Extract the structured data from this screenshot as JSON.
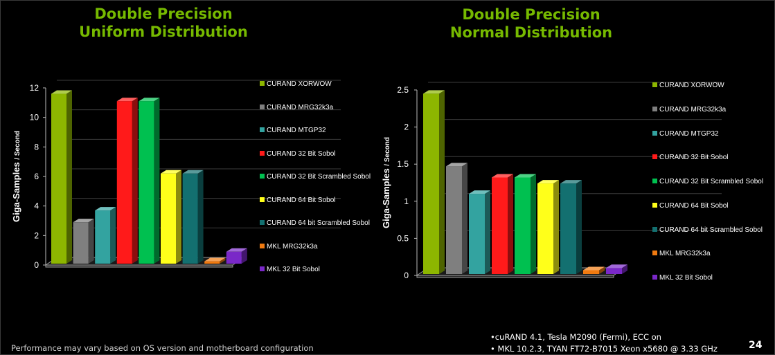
{
  "colors": {
    "title": "#76b900",
    "series": [
      "#8db600",
      "#7f7f7f",
      "#33a3a0",
      "#ff1a1a",
      "#00c050",
      "#ffff1a",
      "#137070",
      "#f07a10",
      "#7a28c8"
    ]
  },
  "chart_data": [
    {
      "type": "bar",
      "title": [
        "Double Precision",
        "Uniform Distribution"
      ],
      "ylabel": "Giga-Samples / Second",
      "ylabel_main": "Giga-Samples",
      "ylabel_unit": "/ Second",
      "ylim": [
        0,
        12
      ],
      "yticks": [
        "0",
        "2",
        "4",
        "6",
        "8",
        "10",
        "12"
      ],
      "grid": true,
      "legend": "right",
      "series": [
        {
          "name": "CURAND XORWOW",
          "values": [
            11.6
          ]
        },
        {
          "name": "CURAND MRG32k3a",
          "values": [
            2.9
          ]
        },
        {
          "name": "CURAND MTGP32",
          "values": [
            3.7
          ]
        },
        {
          "name": "CURAND 32 Bit Sobol",
          "values": [
            11.1
          ]
        },
        {
          "name": "CURAND 32 Bit Scrambled Sobol",
          "values": [
            11.1
          ]
        },
        {
          "name": "CURAND 64 Bit Sobol",
          "values": [
            6.2
          ]
        },
        {
          "name": "CURAND 64 bit Scrambled Sobol",
          "values": [
            6.2
          ]
        },
        {
          "name": "MKL MRG32k3a",
          "values": [
            0.25
          ]
        },
        {
          "name": "MKL 32 Bit Sobol",
          "values": [
            0.9
          ]
        }
      ]
    },
    {
      "type": "bar",
      "title": [
        "Double Precision",
        "Normal Distribution"
      ],
      "ylabel": "Giga-Samples / Second",
      "ylabel_main": "Giga-Samples",
      "ylabel_unit": "/ Second",
      "ylim": [
        0,
        2.5
      ],
      "yticks": [
        "0",
        "0.5",
        "1",
        "1.5",
        "2",
        "2.5"
      ],
      "grid": true,
      "legend": "right",
      "series": [
        {
          "name": "CURAND XORWOW",
          "values": [
            2.45
          ]
        },
        {
          "name": "CURAND MRG32k3a",
          "values": [
            1.47
          ]
        },
        {
          "name": "CURAND MTGP32",
          "values": [
            1.1
          ]
        },
        {
          "name": "CURAND 32 Bit Sobol",
          "values": [
            1.32
          ]
        },
        {
          "name": "CURAND 32 Bit Scrambled Sobol",
          "values": [
            1.32
          ]
        },
        {
          "name": "CURAND 64 Bit Sobol",
          "values": [
            1.24
          ]
        },
        {
          "name": "CURAND 64 bit Scrambled Sobol",
          "values": [
            1.24
          ]
        },
        {
          "name": "MKL MRG32k3a",
          "values": [
            0.07
          ]
        },
        {
          "name": "MKL 32 Bit Sobol",
          "values": [
            0.1
          ]
        }
      ]
    }
  ],
  "footer": {
    "note": "Performance may vary based on OS version and motherboard configuration",
    "system": [
      "•cuRAND 4.1, Tesla M2090 (Fermi), ECC on",
      "• MKL 10.2.3, TYAN FT72-B7015 Xeon x5680 @ 3.33 GHz"
    ],
    "page_number": "24"
  }
}
